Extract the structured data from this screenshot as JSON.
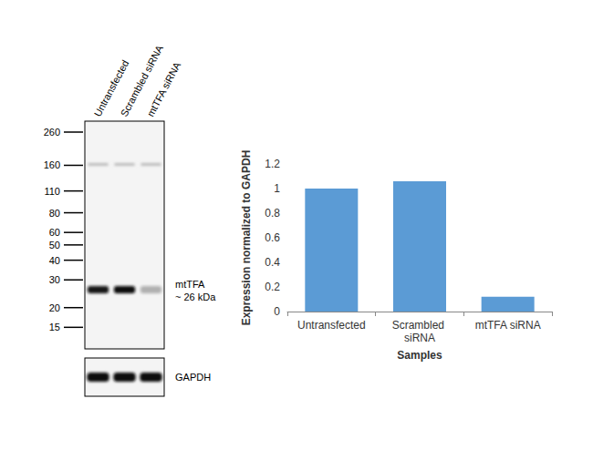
{
  "chart_data": {
    "type": "bar",
    "categories": [
      "Untransfected",
      "Scrambled siRNA",
      "mtTFA siRNA"
    ],
    "values": [
      1,
      1.06,
      0.12
    ],
    "color": "#5b9bd5",
    "xlabel": "Samples",
    "ylabel": "Expression normalized to GAPDH",
    "ylim": [
      0,
      1.2
    ],
    "yticks": [
      0,
      0.2,
      0.4,
      0.6,
      0.8,
      1,
      1.2
    ],
    "grid": false
  },
  "blot": {
    "lanes": [
      "Untransfected",
      "Scrambled siRNA",
      "mtTFA siRNA"
    ],
    "ladder_kda": [
      260,
      160,
      110,
      80,
      60,
      50,
      40,
      30,
      20,
      15
    ],
    "target_label": [
      "mtTFA",
      "~ 26 kDa"
    ],
    "target_kda": 26,
    "loading_control": "GAPDH"
  }
}
